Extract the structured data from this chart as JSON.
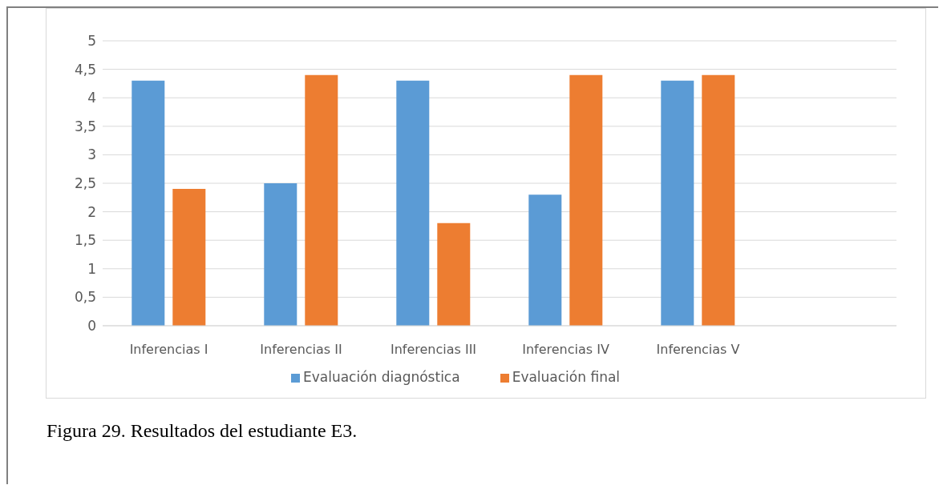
{
  "chart_data": {
    "type": "bar",
    "categories": [
      "Inferencias  I",
      "Inferencias II",
      "Inferencias III",
      "Inferencias IV",
      "Inferencias V",
      null
    ],
    "series": [
      {
        "name": "Evaluación diagnóstica",
        "color": "#5b9bd5",
        "values": [
          4.3,
          2.5,
          4.3,
          2.3,
          4.3,
          null
        ]
      },
      {
        "name": "Evaluación final",
        "color": "#ed7d31",
        "values": [
          2.4,
          4.4,
          1.8,
          4.4,
          4.4,
          null
        ]
      }
    ],
    "ylim": [
      0,
      5
    ],
    "yticks": [
      {
        "value": 0,
        "label": "0"
      },
      {
        "value": 0.5,
        "label": "0,5"
      },
      {
        "value": 1,
        "label": "1"
      },
      {
        "value": 1.5,
        "label": "1,5"
      },
      {
        "value": 2,
        "label": "2"
      },
      {
        "value": 2.5,
        "label": "2,5"
      },
      {
        "value": 3,
        "label": "3"
      },
      {
        "value": 3.5,
        "label": "3,5"
      },
      {
        "value": 4,
        "label": "4"
      },
      {
        "value": 4.5,
        "label": "4,5"
      },
      {
        "value": 5,
        "label": "5"
      }
    ],
    "grid": "y",
    "legend": "bottom",
    "annotations": [
      "Figura 29. Resultados del estudiante E3."
    ]
  }
}
